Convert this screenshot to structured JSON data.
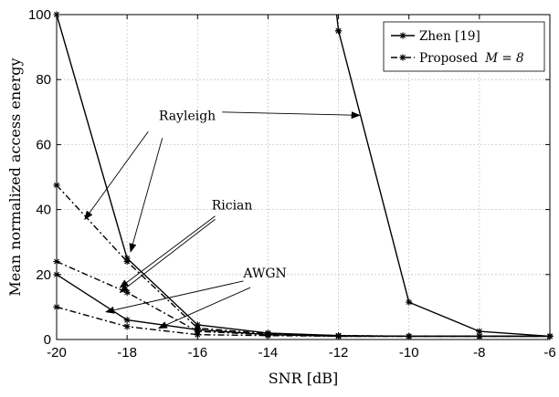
{
  "chart_data": {
    "type": "line",
    "title": "",
    "xlabel": "SNR [dB]",
    "ylabel": "Mean normalized access energy",
    "xlim": [
      -20,
      -6
    ],
    "ylim": [
      0,
      100
    ],
    "xticks": [
      -20,
      -18,
      -16,
      -14,
      -12,
      -10,
      -8,
      -6
    ],
    "yticks": [
      0,
      20,
      40,
      60,
      80,
      100
    ],
    "grid": true,
    "legend_position": "top-right",
    "legend": [
      {
        "label": "Zhen [19]",
        "style": "solid"
      },
      {
        "label": "Proposed",
        "label_math": "M = 8",
        "style": "dashdot"
      }
    ],
    "series": [
      {
        "group": "Zhen [19]",
        "style": "solid",
        "x": [
          -20,
          -18,
          -16,
          -14,
          -12,
          -10,
          -8,
          -6
        ],
        "y": [
          100,
          25,
          4.5,
          2,
          1.2,
          1,
          1,
          1
        ]
      },
      {
        "group": "Zhen [19]",
        "style": "solid",
        "x": [
          -20,
          -18,
          -16,
          -14,
          -12,
          -10,
          -8,
          -6
        ],
        "y": [
          20,
          6,
          3,
          1.5,
          1,
          1,
          1,
          1
        ]
      },
      {
        "group": "Zhen [19]",
        "style": "solid",
        "x": [
          -12,
          -10,
          -8,
          -6
        ],
        "y": [
          95,
          11.5,
          2.5,
          1
        ]
      },
      {
        "group": "Zhen [19]",
        "style": "solid",
        "x": [
          -12.05,
          -12
        ],
        "y": [
          100,
          95
        ]
      },
      {
        "group": "Proposed",
        "style": "dashdot",
        "x": [
          -20,
          -18,
          -16,
          -14,
          -12,
          -10,
          -8,
          -6
        ],
        "y": [
          47.5,
          24,
          3.5,
          1.8,
          1.2,
          1,
          1,
          1
        ]
      },
      {
        "group": "Proposed",
        "style": "dashdot",
        "x": [
          -20,
          -18,
          -16,
          -14,
          -12,
          -10,
          -8,
          -6
        ],
        "y": [
          24,
          14.5,
          2.5,
          1.5,
          1,
          1,
          1,
          1
        ]
      },
      {
        "group": "Proposed",
        "style": "dashdot",
        "x": [
          -20,
          -18,
          -16,
          -14,
          -12,
          -10,
          -8,
          -6
        ],
        "y": [
          10,
          4,
          1.5,
          1.2,
          1,
          1,
          1,
          1
        ]
      }
    ],
    "annotations": [
      {
        "text": "Rayleigh",
        "text_at": [
          -17.1,
          69
        ],
        "arrows": [
          {
            "from": [
              -15.3,
              70
            ],
            "to": [
              -11.4,
              69
            ]
          },
          {
            "from": [
              -17.4,
              64
            ],
            "to": [
              -19.2,
              37
            ]
          },
          {
            "from": [
              -17.0,
              62
            ],
            "to": [
              -17.9,
              27
            ]
          }
        ]
      },
      {
        "text": "Rician",
        "text_at": [
          -15.6,
          41.5
        ],
        "arrows": [
          {
            "from": [
              -15.5,
              38
            ],
            "to": [
              -18.2,
              16
            ]
          },
          {
            "from": [
              -15.5,
              37
            ],
            "to": [
              -18.2,
              14.5
            ]
          }
        ]
      },
      {
        "text": "AWGN",
        "text_at": [
          -14.7,
          20.5
        ],
        "arrows": [
          {
            "from": [
              -14.7,
              18
            ],
            "to": [
              -18.6,
              8.5
            ]
          },
          {
            "from": [
              -14.5,
              16
            ],
            "to": [
              -17.1,
              3.5
            ]
          }
        ]
      }
    ]
  }
}
